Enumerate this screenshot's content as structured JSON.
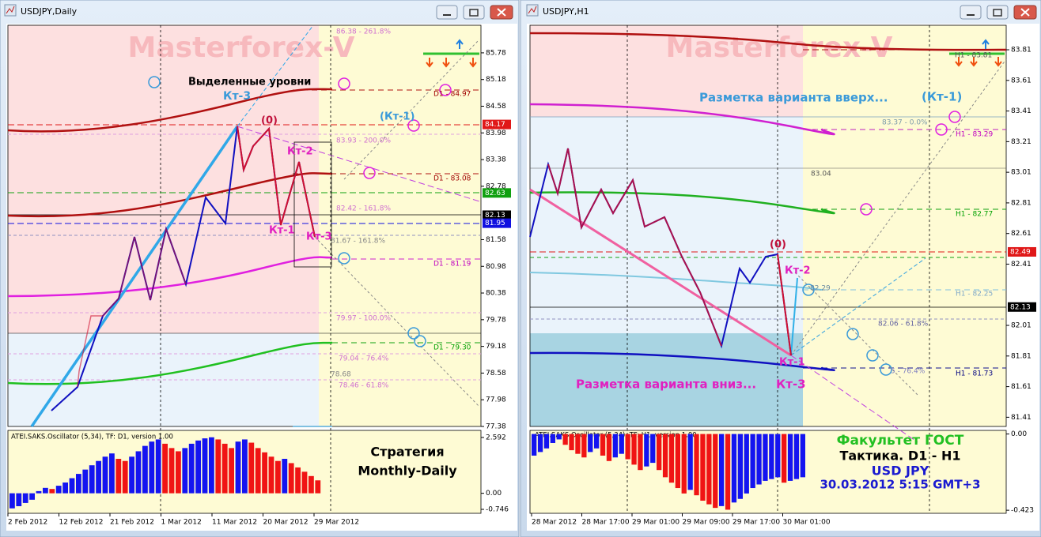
{
  "windows": [
    {
      "title": "USDJPY,Daily",
      "watermark": "Masterforex-V",
      "price_axis": {
        "ylim": [
          77.38,
          86.4
        ],
        "ticks": [
          85.78,
          85.18,
          84.58,
          83.98,
          83.38,
          82.78,
          81.58,
          80.98,
          80.38,
          79.78,
          79.18,
          78.58,
          77.98,
          77.38
        ],
        "markers": [
          {
            "value": 84.17,
            "color": "#e01818"
          },
          {
            "value": 82.63,
            "color": "#10a010"
          },
          {
            "value": 82.13,
            "color": "#000000"
          },
          {
            "value": 81.95,
            "color": "#1010e0"
          }
        ]
      },
      "labels": [
        "Выделенные уровни",
        "Кт-3",
        "(0)",
        "(Кт-1)",
        "Кт-2",
        "Кт-1",
        "Кт-3",
        "86.38 - 261.8%",
        "D1 - 84.97",
        "83.93 - 200.0%",
        "D1 - 83.08",
        "82.42 - 161.8%",
        "81.67 - 161.8%",
        "D1 - 81.19",
        "79.97 - 100.0%",
        "D1 - 79.30",
        "79.04 - 76.4%",
        "78.68",
        "78.46 - 61.8%"
      ],
      "oscillator": {
        "title": "ATEI.SAKS.Oscillator (5,34), TF: D1, version 1.00",
        "ylim": [
          -0.93,
          2.92
        ],
        "ticks": [
          2.592,
          {
            "value": 0,
            "label": "0.00"
          },
          -0.746
        ],
        "values": [
          -0.7,
          -0.6,
          -0.45,
          -0.3,
          0.1,
          0.25,
          0.2,
          0.35,
          0.5,
          0.7,
          0.9,
          1.1,
          1.3,
          1.5,
          1.7,
          1.85,
          1.6,
          1.5,
          1.7,
          1.95,
          2.2,
          2.4,
          2.5,
          2.3,
          2.1,
          1.95,
          2.1,
          2.3,
          2.45,
          2.55,
          2.6,
          2.5,
          2.3,
          2.1,
          2.4,
          2.5,
          2.35,
          2.1,
          1.9,
          1.7,
          1.5,
          1.6,
          1.4,
          1.2,
          1.0,
          0.8,
          0.6
        ]
      },
      "dates": [
        "2 Feb 2012",
        "12 Feb 2012",
        "21 Feb 2012",
        "1 Mar 2012",
        "11 Mar 2012",
        "20 Mar 2012",
        "29 Mar 2012"
      ],
      "caption": [
        "Стратегия",
        "Monthly-Daily"
      ]
    },
    {
      "title": "USDJPY,H1",
      "watermark": "Masterforex-V",
      "price_axis": {
        "ylim": [
          81.35,
          83.97
        ],
        "ticks": [
          83.81,
          83.61,
          83.41,
          83.21,
          83.01,
          82.81,
          82.61,
          82.41,
          82.01,
          81.81,
          81.61,
          81.41
        ],
        "markers": [
          {
            "value": 82.49,
            "color": "#e01818"
          },
          {
            "value": 82.13,
            "color": "#000000"
          }
        ]
      },
      "labels": [
        "Разметка варианта вверх...",
        "(Кт-1)",
        "83.37 - 0.0%",
        "H1 - 83.29",
        "83.04",
        "H1 - 82.77",
        "(0)",
        "Кт-2",
        "82.29",
        "H1 - 82.25",
        "82.06 - 61.8%",
        "Кт-1",
        "Разметка варианта вниз...",
        "Кт-3",
        "H1 - 81.73",
        "5 - 76.4%",
        "H1 - 83.81"
      ],
      "oscillator": {
        "title": "ATEI.SAKS.Oscillator (5,34), TF: H1, version 1.00",
        "ylim": [
          -0.44,
          0.02
        ],
        "ticks": [
          {
            "value": 0,
            "label": "0.00"
          },
          -0.423
        ],
        "values": [
          -0.12,
          -0.1,
          -0.08,
          -0.05,
          -0.03,
          -0.06,
          -0.09,
          -0.11,
          -0.13,
          -0.1,
          -0.08,
          -0.12,
          -0.15,
          -0.13,
          -0.11,
          -0.14,
          -0.17,
          -0.2,
          -0.18,
          -0.16,
          -0.2,
          -0.24,
          -0.27,
          -0.3,
          -0.33,
          -0.31,
          -0.34,
          -0.37,
          -0.39,
          -0.41,
          -0.4,
          -0.42,
          -0.38,
          -0.36,
          -0.33,
          -0.3,
          -0.28,
          -0.26,
          -0.25,
          -0.24,
          -0.27,
          -0.26,
          -0.25,
          -0.24
        ]
      },
      "dates": [
        "28 Mar 2012",
        "28 Mar 17:00",
        "29 Mar 01:00",
        "29 Mar 09:00",
        "29 Mar 17:00",
        "30 Mar 01:00"
      ],
      "caption": [
        "Факультет ГОСТ",
        "Тактика. D1 - H1",
        "USD JPY",
        "30.03.2012 5:15 GMT+3"
      ]
    }
  ]
}
